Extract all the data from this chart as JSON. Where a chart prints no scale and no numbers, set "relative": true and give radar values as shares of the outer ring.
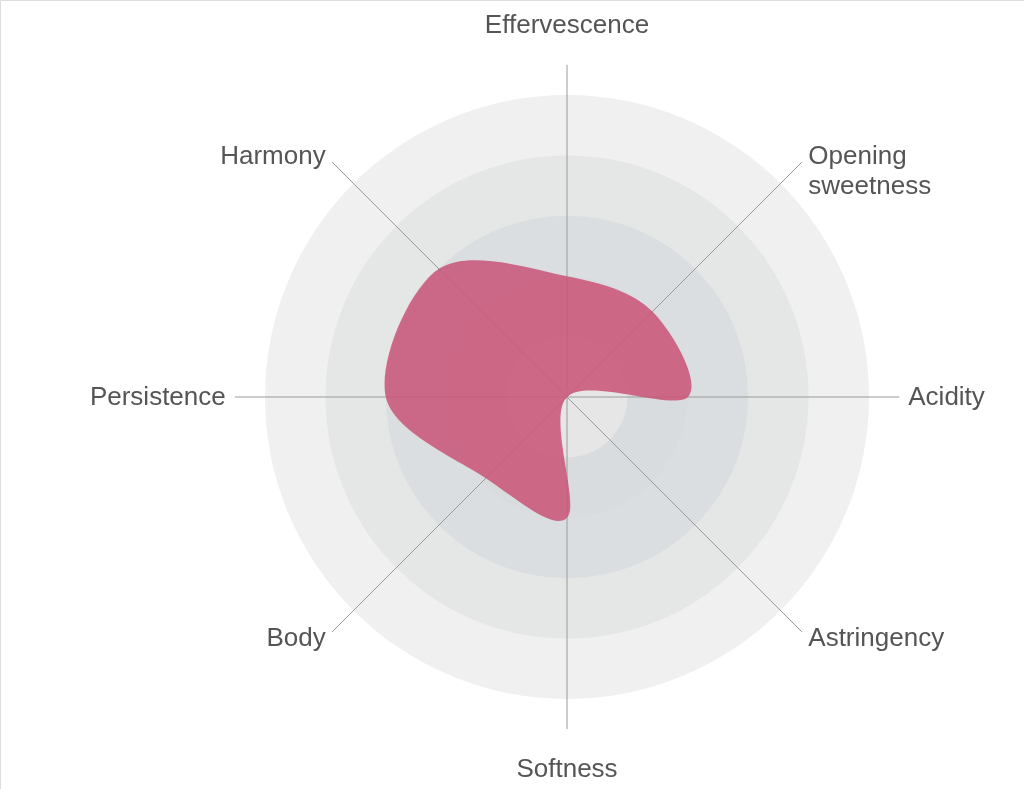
{
  "chart_data": {
    "type": "radar",
    "relative": true,
    "grid": true,
    "categories": [
      "Effervescence",
      "Opening sweetness",
      "Acidity",
      "Astringency",
      "Softness",
      "Body",
      "Persistence",
      "Harmony"
    ],
    "series": [
      {
        "color": "#c9587a",
        "values": [
          0.4,
          0.4,
          0.4,
          0.0,
          0.4,
          0.38,
          0.6,
          0.6
        ]
      }
    ]
  }
}
